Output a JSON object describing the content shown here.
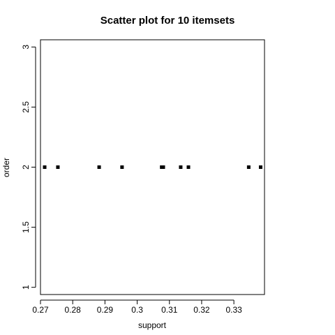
{
  "chart_data": {
    "type": "scatter",
    "title": "Scatter plot for 10 itemsets",
    "xlabel": "support",
    "ylabel": "order",
    "xlim": [
      0.27,
      0.3395
    ],
    "ylim": [
      0.94,
      3.06
    ],
    "xticks": [
      0.27,
      0.28,
      0.29,
      0.3,
      0.31,
      0.32,
      0.33
    ],
    "xtick_labels": [
      "0.27",
      "0.28",
      "0.29",
      "0.3",
      "0.31",
      "0.32",
      "0.33"
    ],
    "yticks": [
      1,
      1.5,
      2,
      2.5,
      3
    ],
    "ytick_labels": [
      "1",
      "1.5",
      "2",
      "2.5",
      "3"
    ],
    "grid": false,
    "marker_color": "#000000",
    "points": [
      {
        "x": 0.2713,
        "y": 2
      },
      {
        "x": 0.2754,
        "y": 2
      },
      {
        "x": 0.2882,
        "y": 2
      },
      {
        "x": 0.2953,
        "y": 2
      },
      {
        "x": 0.3076,
        "y": 2
      },
      {
        "x": 0.3081,
        "y": 2
      },
      {
        "x": 0.3135,
        "y": 2
      },
      {
        "x": 0.3159,
        "y": 2
      },
      {
        "x": 0.3346,
        "y": 2
      },
      {
        "x": 0.3383,
        "y": 2
      }
    ]
  }
}
